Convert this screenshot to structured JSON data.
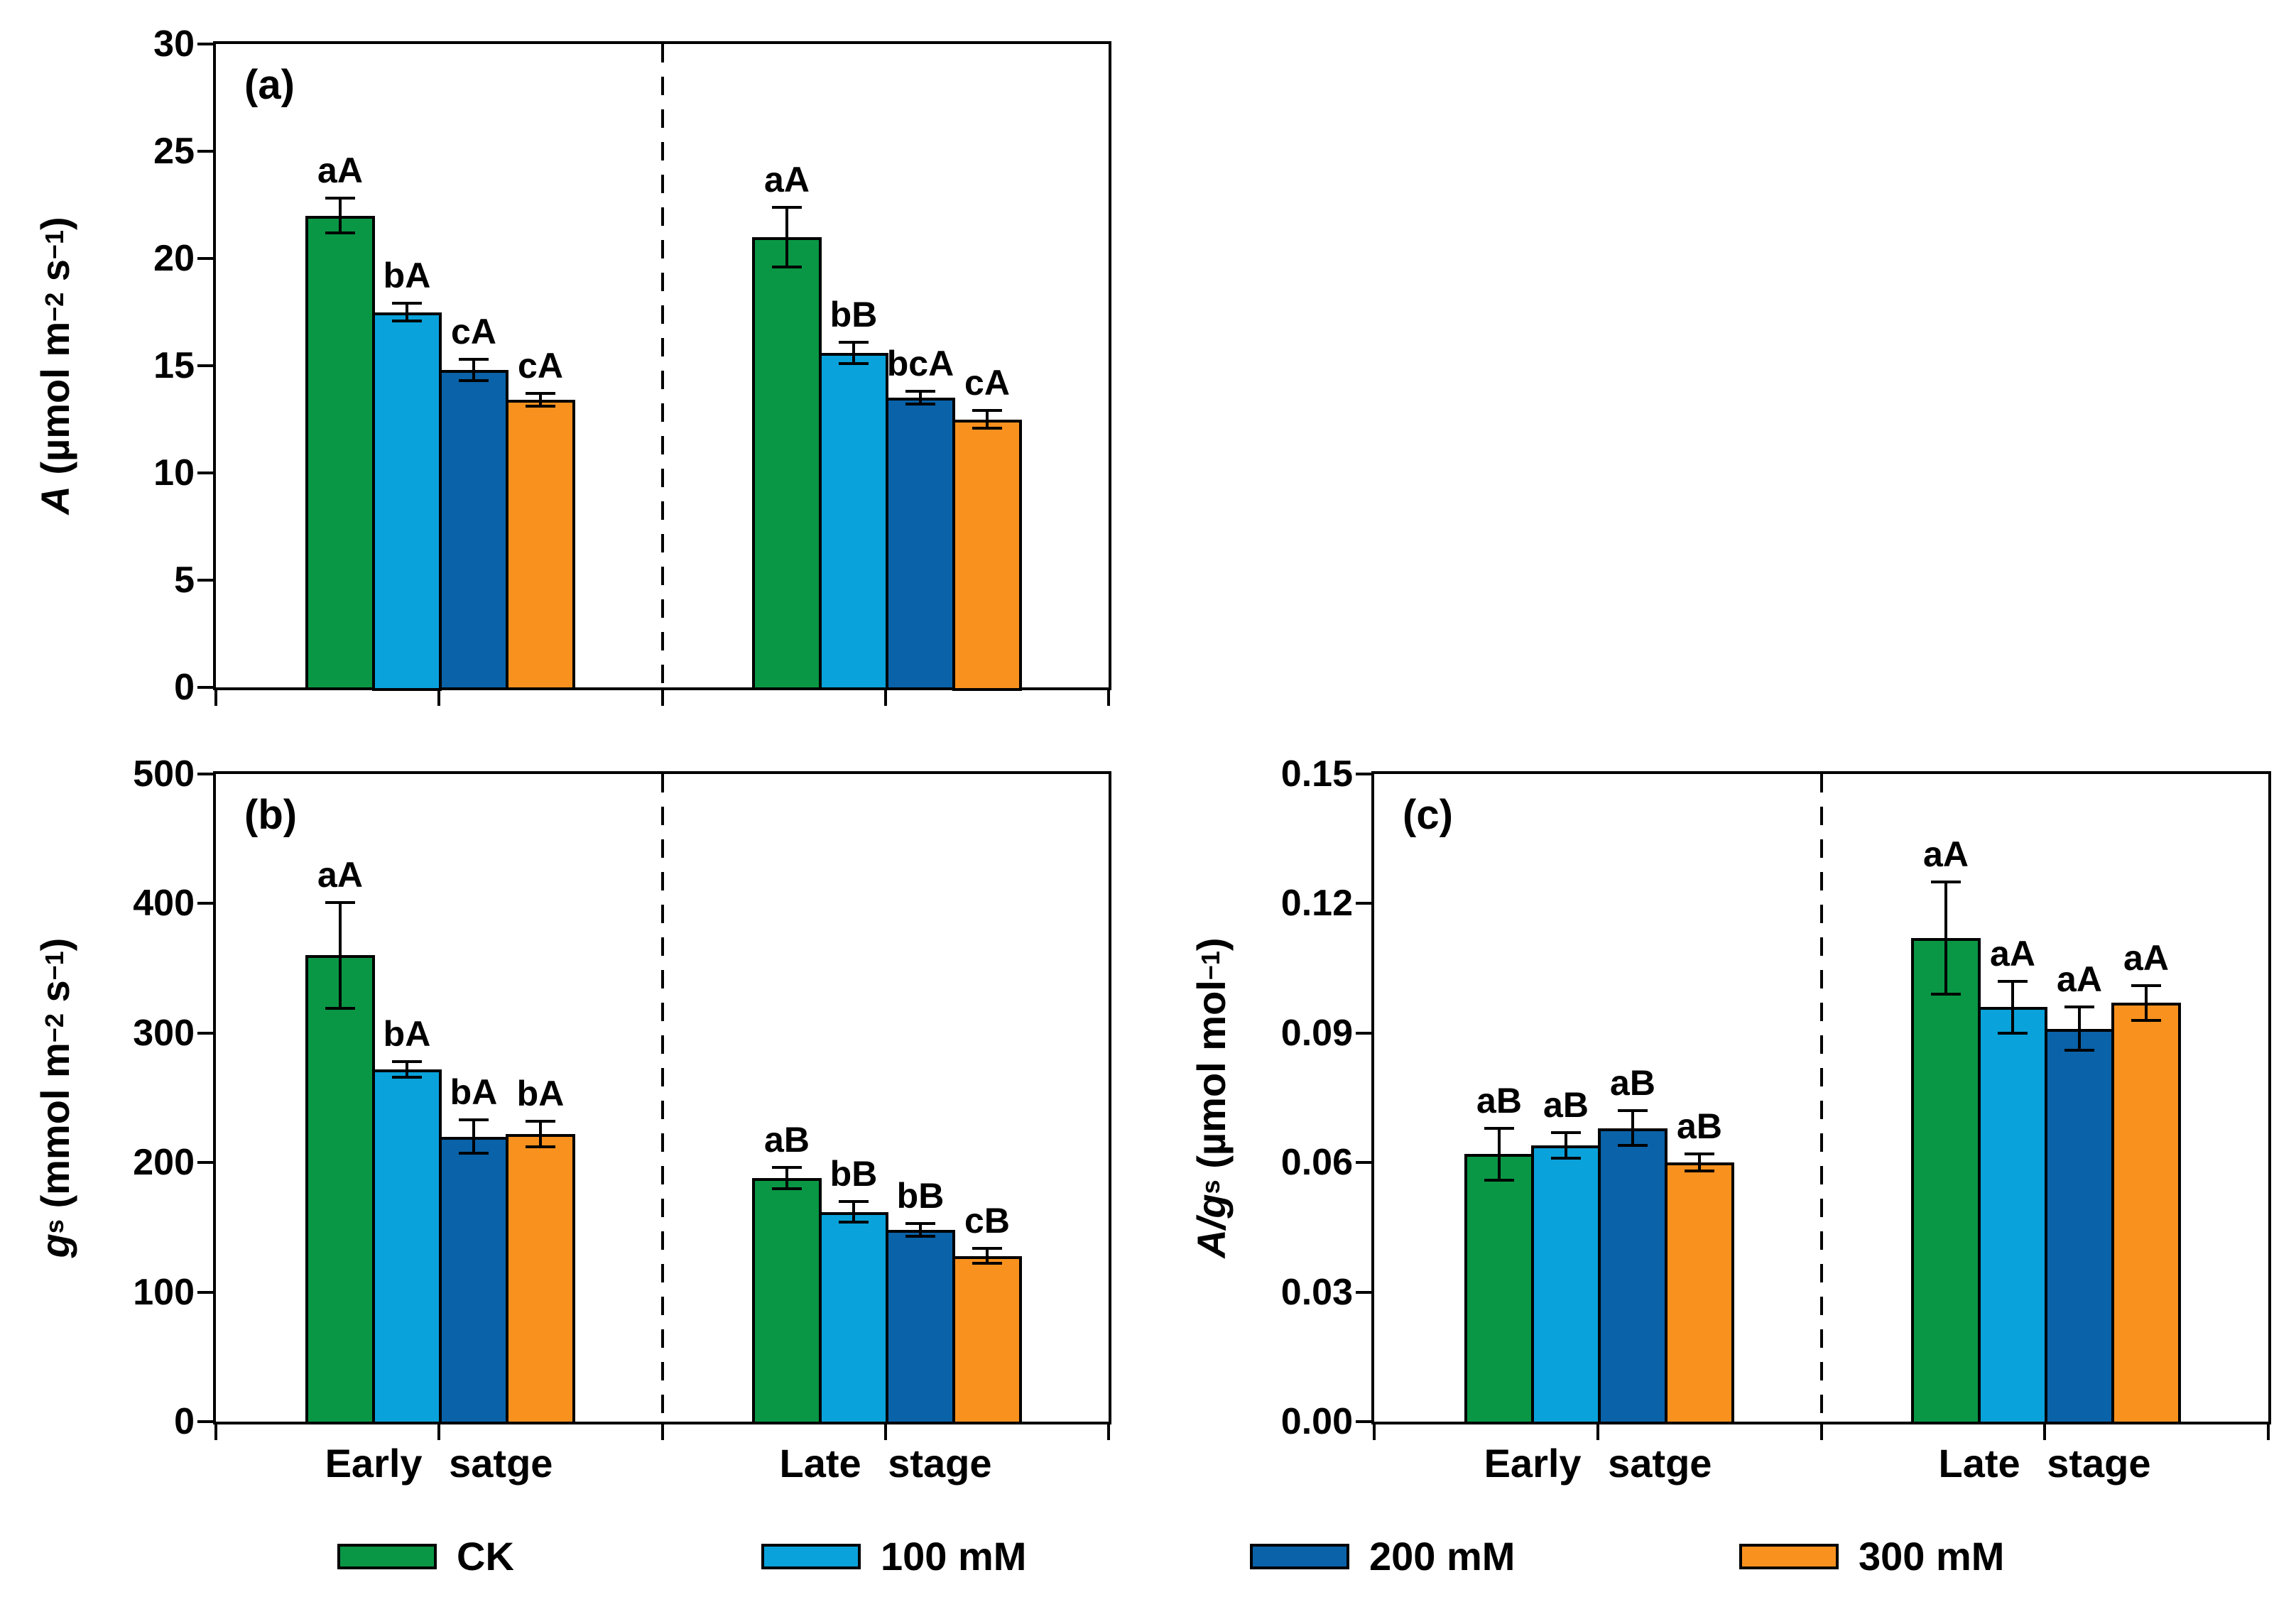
{
  "panel_letters": {
    "a": "(a)",
    "b": "(b)",
    "c": "(c)"
  },
  "stage_labels": {
    "early": "Early satge",
    "late": "Late stage"
  },
  "legend": {
    "items": [
      {
        "label": "CK",
        "color": "#0A9745"
      },
      {
        "label": "100 mM",
        "color": "#0AA2DB"
      },
      {
        "label": "200 mM",
        "color": "#0A62A8"
      },
      {
        "label": "300 mM",
        "color": "#F9911E"
      }
    ]
  },
  "y_titles": {
    "a": {
      "var": "A",
      "sub": "",
      "unit_pre": " (µmol m",
      "sup1": "−2",
      "unit_mid": " s",
      "sup2": "−1",
      "unit_post": ")"
    },
    "b": {
      "var": "g",
      "sub": "s",
      "unit_pre": " (mmol m",
      "sup1": "−2",
      "unit_mid": " s",
      "sup2": "−1",
      "unit_post": ")"
    },
    "c": {
      "var": "A/g",
      "sub": "s",
      "unit_pre": " (µmol mol",
      "sup1": "−1",
      "unit_mid": "",
      "sup2": "",
      "unit_post": ")"
    }
  },
  "chart_data": [
    {
      "panel": "a",
      "type": "bar",
      "title": "",
      "ylabel": "A (µmol m−2 s−1)",
      "ylim": [
        0,
        30
      ],
      "ytick_step": 5,
      "ytick_labels": [
        "0",
        "5",
        "10",
        "15",
        "20",
        "25",
        "30"
      ],
      "categories": [
        "Early satge",
        "Late stage"
      ],
      "show_category_labels": false,
      "grid": false,
      "series": [
        {
          "name": "CK",
          "color": "#0A9745",
          "values": [
            22.0,
            21.0
          ],
          "errors": [
            0.8,
            1.4
          ],
          "letters": [
            "aA",
            "aA"
          ]
        },
        {
          "name": "100 mM",
          "color": "#0AA2DB",
          "values": [
            17.5,
            15.6
          ],
          "errors": [
            0.4,
            0.5
          ],
          "letters": [
            "bA",
            "bB"
          ]
        },
        {
          "name": "200 mM",
          "color": "#0A62A8",
          "values": [
            14.8,
            13.5
          ],
          "errors": [
            0.5,
            0.3
          ],
          "letters": [
            "cA",
            "bcA"
          ]
        },
        {
          "name": "300 mM",
          "color": "#F9911E",
          "values": [
            13.4,
            12.5
          ],
          "errors": [
            0.3,
            0.4
          ],
          "letters": [
            "cA",
            "cA"
          ]
        }
      ]
    },
    {
      "panel": "b",
      "type": "bar",
      "title": "",
      "ylabel": "gs (mmol m−2 s−1)",
      "ylim": [
        0,
        500
      ],
      "ytick_step": 100,
      "ytick_labels": [
        "0",
        "100",
        "200",
        "300",
        "400",
        "500"
      ],
      "categories": [
        "Early satge",
        "Late stage"
      ],
      "show_category_labels": true,
      "grid": false,
      "series": [
        {
          "name": "CK",
          "color": "#0A9745",
          "values": [
            360,
            188
          ],
          "errors": [
            41,
            8
          ],
          "letters": [
            "aA",
            "aB"
          ]
        },
        {
          "name": "100 mM",
          "color": "#0AA2DB",
          "values": [
            272,
            162
          ],
          "errors": [
            6,
            8
          ],
          "letters": [
            "bA",
            "bB"
          ]
        },
        {
          "name": "200 mM",
          "color": "#0A62A8",
          "values": [
            220,
            148
          ],
          "errors": [
            13,
            5
          ],
          "letters": [
            "bA",
            "bB"
          ]
        },
        {
          "name": "300 mM",
          "color": "#F9911E",
          "values": [
            222,
            128
          ],
          "errors": [
            10,
            6
          ],
          "letters": [
            "bA",
            "cB"
          ]
        }
      ]
    },
    {
      "panel": "c",
      "type": "bar",
      "title": "",
      "ylabel": "A/gs (µmol mol−1)",
      "ylim": [
        0,
        0.15
      ],
      "ytick_step": 0.03,
      "ytick_labels": [
        "0.00",
        "0.03",
        "0.06",
        "0.09",
        "0.12",
        "0.15"
      ],
      "categories": [
        "Early satge",
        "Late stage"
      ],
      "show_category_labels": true,
      "grid": false,
      "series": [
        {
          "name": "CK",
          "color": "#0A9745",
          "values": [
            0.062,
            0.112
          ],
          "errors": [
            0.006,
            0.013
          ],
          "letters": [
            "aB",
            "aA"
          ]
        },
        {
          "name": "100 mM",
          "color": "#0AA2DB",
          "values": [
            0.064,
            0.096
          ],
          "errors": [
            0.003,
            0.006
          ],
          "letters": [
            "aB",
            "aA"
          ]
        },
        {
          "name": "200 mM",
          "color": "#0A62A8",
          "values": [
            0.068,
            0.091
          ],
          "errors": [
            0.004,
            0.005
          ],
          "letters": [
            "aB",
            "aA"
          ]
        },
        {
          "name": "300 mM",
          "color": "#F9911E",
          "values": [
            0.06,
            0.097
          ],
          "errors": [
            0.002,
            0.004
          ],
          "letters": [
            "aB",
            "aA"
          ]
        }
      ]
    }
  ]
}
